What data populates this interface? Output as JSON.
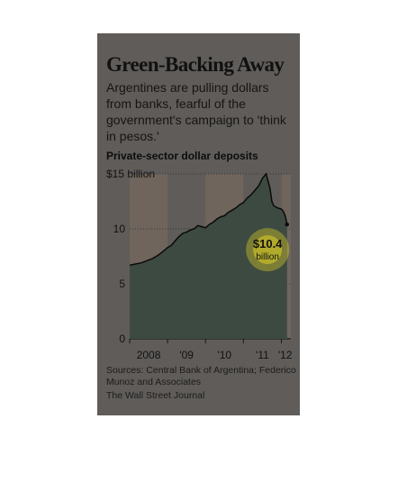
{
  "headline": "Green-Backing Away",
  "subhead": "Argentines are pulling dollars from banks, fearful of the government's campaign to 'think in pesos.'",
  "source": "Sources: Central Bank of Argentina; Federico Munoz and Associates",
  "credit": "The Wall Street Journal",
  "colors": {
    "background": "#5f5c59",
    "area_fill": "#3d4a41",
    "line": "#0a0a0a",
    "year_band": "#6f655c",
    "highlight": "#f4e021"
  },
  "chart_data": {
    "type": "area",
    "title": "Private-sector dollar deposits",
    "ylim": [
      0,
      15
    ],
    "yticks": [
      {
        "value": 0,
        "label": "0"
      },
      {
        "value": 5,
        "label": "5"
      },
      {
        "value": 10,
        "label": "10"
      },
      {
        "value": 15,
        "label": "$15 billion"
      }
    ],
    "xlim": [
      2008.0,
      2012.25
    ],
    "xticks": [
      {
        "value": 2008.5,
        "label": "2008"
      },
      {
        "value": 2009.5,
        "label": "'09"
      },
      {
        "value": 2010.5,
        "label": "'10"
      },
      {
        "value": 2011.5,
        "label": "'11"
      },
      {
        "value": 2012.1,
        "label": "'12"
      }
    ],
    "grid": true,
    "series": [
      {
        "x": [
          2008.0,
          2008.15,
          2008.3,
          2008.45,
          2008.6,
          2008.75,
          2008.9,
          2009.0,
          2009.1,
          2009.2,
          2009.3,
          2009.4,
          2009.5,
          2009.6,
          2009.7,
          2009.8,
          2009.9,
          2010.0,
          2010.1,
          2010.2,
          2010.3,
          2010.4,
          2010.5,
          2010.6,
          2010.7,
          2010.8,
          2010.9,
          2011.0,
          2011.1,
          2011.2,
          2011.3,
          2011.4,
          2011.5,
          2011.6,
          2011.7,
          2011.75,
          2011.8,
          2011.85,
          2011.9,
          2012.0,
          2012.05,
          2012.1,
          2012.15
        ],
        "values": [
          6.7,
          6.8,
          6.9,
          7.1,
          7.3,
          7.6,
          8.0,
          8.3,
          8.5,
          8.9,
          9.3,
          9.6,
          9.7,
          9.9,
          10.0,
          10.3,
          10.2,
          10.1,
          10.4,
          10.6,
          10.9,
          11.1,
          11.2,
          11.5,
          11.7,
          11.9,
          12.2,
          12.4,
          12.8,
          13.1,
          13.5,
          13.9,
          14.6,
          15.0,
          13.7,
          12.5,
          12.1,
          12.0,
          11.9,
          11.8,
          11.6,
          11.2,
          10.4
        ]
      }
    ],
    "annotation": {
      "label": "$10.4",
      "unit": "billion",
      "x": 2011.85,
      "value": 10.4
    }
  }
}
